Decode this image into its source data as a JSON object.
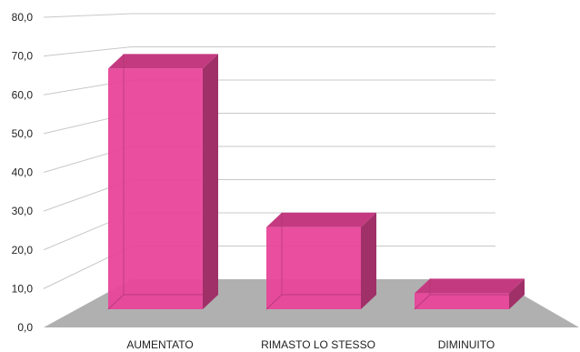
{
  "chart_data": {
    "type": "bar",
    "categories": [
      "AUMENTATO",
      "RIMASTO LO STESSO",
      "DIMINUITO"
    ],
    "values": [
      63.0,
      21.5,
      4.2
    ],
    "y_ticks": [
      "0,0",
      "10,0",
      "20,0",
      "30,0",
      "40,0",
      "50,0",
      "60,0",
      "70,0",
      "80,0"
    ],
    "ylim": [
      0,
      80
    ],
    "grid": true,
    "three_d": true,
    "colors": {
      "bar_front": "#e8449a",
      "bar_top": "#c43a80",
      "bar_side": "#a03068",
      "floor": "#b0b0b0",
      "grid": "#c8c8c8"
    }
  }
}
